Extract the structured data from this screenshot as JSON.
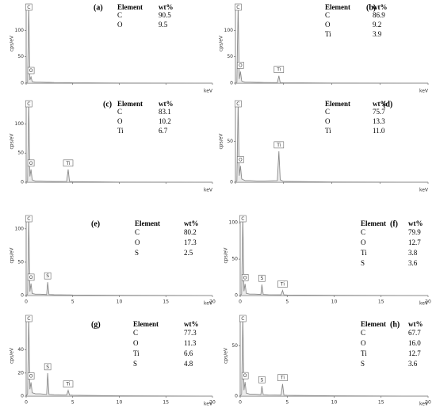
{
  "chart_data": [
    {
      "type": "line",
      "panel_label": "(a)",
      "ylabel": "cps/eV",
      "xlabel": "keV",
      "xlim": [
        0,
        20
      ],
      "ylim": [
        0,
        150
      ],
      "yticks": [
        0,
        50,
        100
      ],
      "xticks": [
        0,
        5,
        10,
        15,
        20
      ],
      "xtick_labels": false,
      "color": "#8a8a8a",
      "x": [
        0,
        0.15,
        0.28,
        0.4,
        0.52,
        0.65,
        1,
        1.5,
        2.2,
        2.31,
        2.45,
        3,
        4.35,
        4.51,
        4.65,
        5,
        10,
        20
      ],
      "values": [
        0,
        2,
        150,
        6,
        12,
        3,
        2,
        2,
        1.5,
        1.5,
        1.5,
        1.2,
        1,
        1,
        1,
        0.8,
        0.3,
        0
      ],
      "peaks": [
        {
          "label": "C",
          "x": 0.28
        },
        {
          "label": "O",
          "x": 0.52
        }
      ],
      "table": {
        "header": [
          "Element",
          "wt%"
        ],
        "rows": [
          [
            "C",
            "90.5"
          ],
          [
            "O",
            "9.5"
          ]
        ]
      }
    },
    {
      "type": "line",
      "panel_label": "(b)",
      "ylabel": "cps/eV",
      "xlabel": "keV",
      "xlim": [
        0,
        20
      ],
      "ylim": [
        0,
        150
      ],
      "yticks": [
        0,
        50,
        100
      ],
      "xticks": [
        0,
        5,
        10,
        15,
        20
      ],
      "xtick_labels": false,
      "color": "#8a8a8a",
      "x": [
        0,
        0.15,
        0.28,
        0.4,
        0.52,
        0.65,
        1,
        1.5,
        2.2,
        2.31,
        2.45,
        3,
        4.35,
        4.51,
        4.65,
        5,
        10,
        20
      ],
      "values": [
        0,
        2,
        150,
        8,
        22,
        4,
        2,
        2,
        1.5,
        1.5,
        1.5,
        1.2,
        1,
        14,
        1,
        0.8,
        0.3,
        0
      ],
      "peaks": [
        {
          "label": "C",
          "x": 0.28
        },
        {
          "label": "O",
          "x": 0.52
        },
        {
          "label": "Ti",
          "x": 4.51
        }
      ],
      "table": {
        "header": [
          "Element",
          "wt%"
        ],
        "rows": [
          [
            "C",
            "86.9"
          ],
          [
            "O",
            "9.2"
          ],
          [
            "Ti",
            "3.9"
          ]
        ]
      }
    },
    {
      "type": "line",
      "panel_label": "(c)",
      "ylabel": "cps/eV",
      "xlabel": "keV",
      "xlim": [
        0,
        20
      ],
      "ylim": [
        0,
        140
      ],
      "yticks": [
        0,
        50,
        100
      ],
      "xticks": [
        0,
        5,
        10,
        15,
        20
      ],
      "xtick_labels": false,
      "color": "#8a8a8a",
      "x": [
        0,
        0.15,
        0.28,
        0.4,
        0.52,
        0.65,
        1,
        1.5,
        2.2,
        2.31,
        2.45,
        3,
        4.35,
        4.51,
        4.65,
        5,
        10,
        20
      ],
      "values": [
        0,
        2,
        140,
        10,
        22,
        4,
        2,
        2,
        1.5,
        1.5,
        1.5,
        1.2,
        1.5,
        22,
        1.5,
        1,
        0.3,
        0
      ],
      "peaks": [
        {
          "label": "C",
          "x": 0.28
        },
        {
          "label": "O",
          "x": 0.52
        },
        {
          "label": "Ti",
          "x": 4.51
        }
      ],
      "table": {
        "header": [
          "Element",
          "wt%"
        ],
        "rows": [
          [
            "C",
            "83.1"
          ],
          [
            "O",
            "10.2"
          ],
          [
            "Ti",
            "6.7"
          ]
        ]
      }
    },
    {
      "type": "line",
      "panel_label": "(d)",
      "ylabel": "cps/eV",
      "xlabel": "keV",
      "xlim": [
        0,
        20
      ],
      "ylim": [
        0,
        100
      ],
      "yticks": [
        0,
        50
      ],
      "xticks": [
        0,
        5,
        10,
        15,
        20
      ],
      "xtick_labels": false,
      "color": "#8a8a8a",
      "x": [
        0,
        0.15,
        0.28,
        0.4,
        0.52,
        0.65,
        1,
        1.5,
        2.2,
        2.31,
        2.45,
        3,
        4.35,
        4.51,
        4.65,
        5,
        10,
        20
      ],
      "values": [
        0,
        2,
        100,
        8,
        20,
        4,
        2,
        2,
        1.5,
        1.5,
        1.5,
        1.5,
        2,
        38,
        3,
        1,
        0.3,
        0
      ],
      "peaks": [
        {
          "label": "C",
          "x": 0.28
        },
        {
          "label": "O",
          "x": 0.52
        },
        {
          "label": "Ti",
          "x": 4.51
        }
      ],
      "table": {
        "header": [
          "Element",
          "wt%"
        ],
        "rows": [
          [
            "C",
            "75.7"
          ],
          [
            "O",
            "13.3"
          ],
          [
            "Ti",
            "11.0"
          ]
        ]
      }
    },
    {
      "type": "line",
      "panel_label": "(e)",
      "ylabel": "cps/eV",
      "xlabel": "keV",
      "xlim": [
        0,
        20
      ],
      "ylim": [
        0,
        120
      ],
      "yticks": [
        0,
        50,
        100
      ],
      "xticks": [
        0,
        5,
        10,
        15,
        20
      ],
      "xtick_labels": true,
      "color": "#8a8a8a",
      "x": [
        0,
        0.15,
        0.28,
        0.4,
        0.52,
        0.65,
        1,
        1.5,
        2.2,
        2.31,
        2.45,
        3,
        4.35,
        4.51,
        4.65,
        5,
        10,
        20
      ],
      "values": [
        0,
        2,
        120,
        6,
        18,
        3,
        2,
        2,
        1.5,
        20,
        1.5,
        1.2,
        1,
        1,
        1,
        0.8,
        0.3,
        0
      ],
      "peaks": [
        {
          "label": "C",
          "x": 0.28
        },
        {
          "label": "O",
          "x": 0.52
        },
        {
          "label": "S",
          "x": 2.31
        }
      ],
      "table": {
        "header": [
          "Element",
          "wt%"
        ],
        "rows": [
          [
            "C",
            "80.2"
          ],
          [
            "O",
            "17.3"
          ],
          [
            "S",
            "2.5"
          ]
        ]
      }
    },
    {
      "type": "line",
      "panel_label": "(f)",
      "ylabel": "cps/eV",
      "xlabel": "keV",
      "xlim": [
        0,
        20
      ],
      "ylim": [
        0,
        110
      ],
      "yticks": [
        0,
        50,
        100
      ],
      "xticks": [
        0,
        5,
        10,
        15,
        20
      ],
      "xtick_labels": true,
      "color": "#8a8a8a",
      "x": [
        0,
        0.15,
        0.28,
        0.4,
        0.52,
        0.65,
        1,
        1.5,
        2.2,
        2.31,
        2.45,
        3,
        4.35,
        4.51,
        4.65,
        5,
        10,
        20
      ],
      "values": [
        0,
        2,
        110,
        6,
        16,
        3,
        2,
        2,
        1.5,
        15,
        1.5,
        1.2,
        1,
        7,
        1,
        0.8,
        0.3,
        0
      ],
      "peaks": [
        {
          "label": "C",
          "x": 0.28
        },
        {
          "label": "O",
          "x": 0.52
        },
        {
          "label": "S",
          "x": 2.31
        },
        {
          "label": "Ti",
          "x": 4.51
        }
      ],
      "table": {
        "header": [
          "Element",
          "wt%"
        ],
        "rows": [
          [
            "C",
            "79.9"
          ],
          [
            "O",
            "12.7"
          ],
          [
            "Ti",
            "3.8"
          ],
          [
            "S",
            "3.6"
          ]
        ]
      }
    },
    {
      "type": "line",
      "panel_label": "(g)",
      "ylabel": "cps/eV",
      "xlabel": "keV",
      "xlim": [
        0,
        20
      ],
      "ylim": [
        0,
        70
      ],
      "yticks": [
        0,
        20,
        40
      ],
      "xticks": [
        0,
        5,
        10,
        15,
        20
      ],
      "xtick_labels": true,
      "color": "#8a8a8a",
      "x": [
        0,
        0.15,
        0.28,
        0.4,
        0.52,
        0.65,
        1,
        1.5,
        2.2,
        2.31,
        2.45,
        3,
        4.35,
        4.51,
        4.65,
        5,
        10,
        20
      ],
      "values": [
        0,
        2,
        70,
        6,
        12,
        3,
        2,
        2,
        1.5,
        20,
        1.5,
        1.2,
        1,
        5,
        1,
        0.8,
        0.3,
        0
      ],
      "peaks": [
        {
          "label": "C",
          "x": 0.28
        },
        {
          "label": "O",
          "x": 0.52
        },
        {
          "label": "S",
          "x": 2.31
        },
        {
          "label": "Ti",
          "x": 4.51
        }
      ],
      "table": {
        "header": [
          "Element",
          "wt%"
        ],
        "rows": [
          [
            "C",
            "77.3"
          ],
          [
            "O",
            "11.3"
          ],
          [
            "Ti",
            "6.6"
          ],
          [
            "S",
            "4.8"
          ]
        ]
      }
    },
    {
      "type": "line",
      "panel_label": "(h)",
      "ylabel": "cps/eV",
      "xlabel": "keV",
      "xlim": [
        0,
        20
      ],
      "ylim": [
        0,
        80
      ],
      "yticks": [
        0,
        50
      ],
      "xticks": [
        0,
        5,
        10,
        15,
        20
      ],
      "xtick_labels": true,
      "color": "#8a8a8a",
      "x": [
        0,
        0.15,
        0.28,
        0.4,
        0.52,
        0.65,
        1,
        1.5,
        2.2,
        2.31,
        2.45,
        3,
        4.35,
        4.51,
        4.65,
        5,
        10,
        20
      ],
      "values": [
        0,
        2,
        80,
        6,
        14,
        3,
        2,
        2,
        1.5,
        10,
        1.5,
        1.2,
        1,
        12,
        1,
        0.8,
        0.3,
        0
      ],
      "peaks": [
        {
          "label": "C",
          "x": 0.28
        },
        {
          "label": "O",
          "x": 0.52
        },
        {
          "label": "S",
          "x": 2.31
        },
        {
          "label": "Ti",
          "x": 4.51
        }
      ],
      "table": {
        "header": [
          "Element",
          "wt%"
        ],
        "rows": [
          [
            "C",
            "67.7"
          ],
          [
            "O",
            "16.0"
          ],
          [
            "Ti",
            "12.7"
          ],
          [
            "S",
            "3.6"
          ]
        ]
      }
    }
  ]
}
